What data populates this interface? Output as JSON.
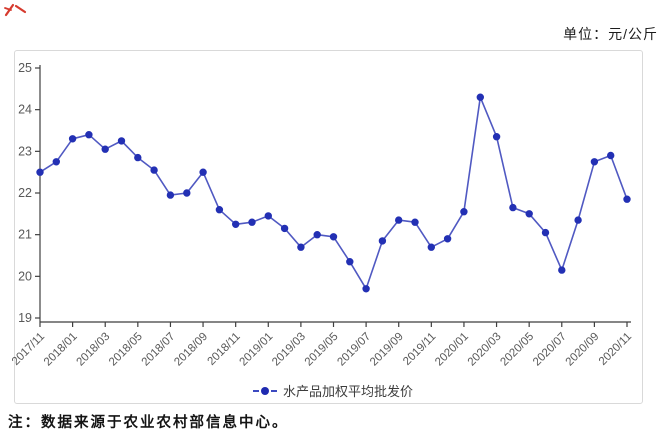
{
  "page": {
    "unit_label": "单位：元/公斤",
    "note": "注：数据来源于农业农村部信息中心。",
    "icons": {
      "red_mark": "red-scribble-mark",
      "legend_marker": "dash-dot-dash-line-marker"
    }
  },
  "colors": {
    "line": "#5059c2",
    "marker": "#2330b4",
    "axis": "#3f3f3f",
    "tick_labels": "#595959",
    "frame_border": "#d9d9d9",
    "note_text": "#141414",
    "red_mark": "#d63a2e"
  },
  "chart_data": {
    "type": "line",
    "title": "",
    "ylabel": "",
    "xlabel": "",
    "unit": "元/公斤",
    "legend": [
      "水产品加权平均批发价"
    ],
    "legend_position": "bottom",
    "grid": false,
    "ylim": [
      19,
      25
    ],
    "yticks": [
      19,
      20,
      21,
      22,
      23,
      24,
      25
    ],
    "xtick_labels": [
      "2017/11",
      "2018/01",
      "2018/03",
      "2018/05",
      "2018/07",
      "2018/09",
      "2018/11",
      "2019/01",
      "2019/03",
      "2019/05",
      "2019/07",
      "2019/09",
      "2019/11",
      "2020/01",
      "2020/03",
      "2020/05",
      "2020/07",
      "2020/09",
      "2020/11"
    ],
    "x": [
      "2017/11",
      "2017/12",
      "2018/01",
      "2018/02",
      "2018/03",
      "2018/04",
      "2018/05",
      "2018/06",
      "2018/07",
      "2018/08",
      "2018/09",
      "2018/10",
      "2018/11",
      "2018/12",
      "2019/01",
      "2019/02",
      "2019/03",
      "2019/04",
      "2019/05",
      "2019/06",
      "2019/07",
      "2019/08",
      "2019/09",
      "2019/10",
      "2019/11",
      "2019/12",
      "2020/01",
      "2020/02",
      "2020/03",
      "2020/04",
      "2020/05",
      "2020/06",
      "2020/07",
      "2020/08",
      "2020/09",
      "2020/10",
      "2020/11"
    ],
    "values": [
      22.5,
      22.75,
      23.3,
      23.4,
      23.05,
      23.25,
      22.85,
      22.55,
      21.95,
      22.0,
      22.5,
      21.6,
      21.25,
      21.3,
      21.45,
      21.15,
      20.7,
      21.0,
      20.95,
      20.35,
      19.7,
      20.85,
      21.35,
      21.3,
      20.7,
      20.9,
      21.55,
      24.3,
      23.35,
      21.65,
      21.5,
      21.05,
      20.15,
      21.35,
      22.75,
      22.9,
      21.85
    ]
  }
}
